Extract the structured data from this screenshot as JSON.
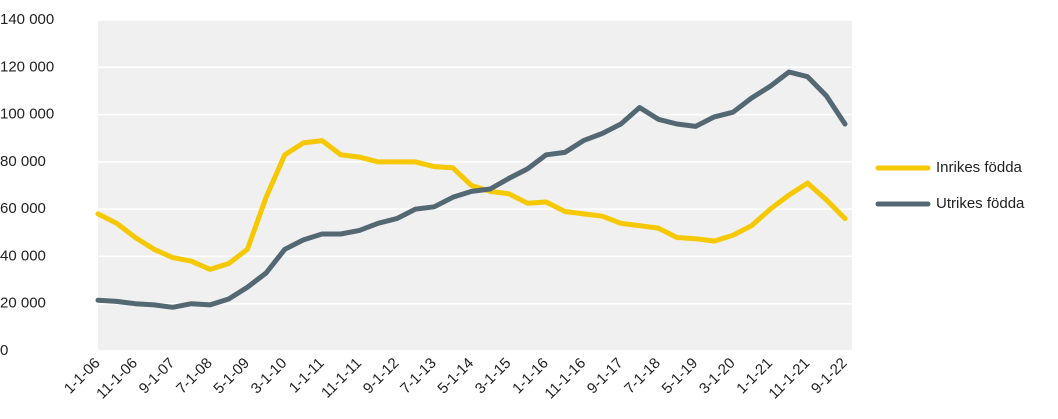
{
  "chart_data": {
    "type": "line",
    "categories": [
      "1-1-06",
      null,
      "11-1-06",
      null,
      "9-1-07",
      null,
      "7-1-08",
      null,
      "5-1-09",
      null,
      "3-1-10",
      null,
      "1-1-11",
      null,
      "11-1-11",
      null,
      "9-1-12",
      null,
      "7-1-13",
      null,
      "5-1-14",
      null,
      "3-1-15",
      null,
      "1-1-16",
      null,
      "11-1-16",
      null,
      "9-1-17",
      null,
      "7-1-18",
      null,
      "5-1-19",
      null,
      "3-1-20",
      null,
      "1-1-21",
      null,
      "11-1-21",
      null,
      "9-1-22"
    ],
    "series": [
      {
        "name": "Inrikes födda",
        "color": "#f5c800",
        "values": [
          58000,
          54000,
          48000,
          43000,
          39500,
          38000,
          34500,
          37000,
          43000,
          65000,
          83000,
          88000,
          89000,
          83000,
          82000,
          80000,
          80000,
          80000,
          78000,
          77500,
          70000,
          67500,
          66500,
          62500,
          63000,
          59000,
          58000,
          57000,
          54000,
          53000,
          52000,
          48000,
          47500,
          46500,
          49000,
          53000,
          60000,
          66000,
          71000,
          64000,
          56000
        ]
      },
      {
        "name": "Utrikes födda",
        "color": "#546874",
        "values": [
          21500,
          21000,
          20000,
          19500,
          18500,
          20000,
          19500,
          22000,
          27000,
          33000,
          43000,
          47000,
          49500,
          49500,
          51000,
          54000,
          56000,
          60000,
          61000,
          65000,
          67500,
          68500,
          73000,
          77000,
          83000,
          84000,
          89000,
          92000,
          96000,
          103000,
          98000,
          96000,
          95000,
          99000,
          101000,
          107000,
          112000,
          118000,
          116000,
          108000,
          96000
        ]
      }
    ],
    "ylim": [
      0,
      140000
    ],
    "yticks": [
      0,
      {
        "value": 20000,
        "label": "20 000"
      },
      {
        "value": 40000,
        "label": "40 000"
      },
      {
        "value": 60000,
        "label": "60 000"
      },
      {
        "value": 80000,
        "label": "80 000"
      },
      {
        "value": 100000,
        "label": "100 000"
      },
      {
        "value": 120000,
        "label": "120 000"
      },
      {
        "value": 140000,
        "label": "140 000"
      }
    ],
    "grid": true,
    "legend": "right"
  }
}
